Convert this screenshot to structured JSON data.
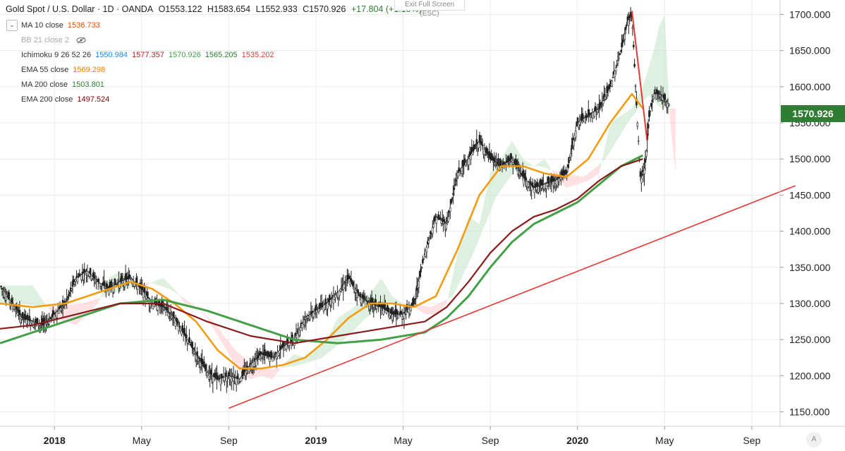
{
  "header": {
    "symbol": "Gold Spot / U.S. Dollar · 1D · OANDA",
    "open": "O1553.122",
    "high": "H1583.654",
    "low": "L1552.933",
    "close": "C1570.926",
    "change": "+17.804 (+1.15%)",
    "exit_fullscreen": "Exit Full Screen (ESC)"
  },
  "indicators": [
    {
      "label": "MA 10 close",
      "values": [
        "1536.733"
      ],
      "colors": [
        "#e65100"
      ]
    },
    {
      "label": "BB 21 close 2",
      "values": [],
      "colors": []
    },
    {
      "label": "Ichimoku 9 26 52 26",
      "values": [
        "1550.984",
        "1577.357",
        "1570.926",
        "1565.205",
        "1535.202"
      ],
      "colors": [
        "#1e88e5",
        "#b71c1c",
        "#43a047",
        "#2e7d32",
        "#e53935"
      ]
    },
    {
      "label": "EMA 55 close",
      "values": [
        "1569.298"
      ],
      "colors": [
        "#f57c00"
      ]
    },
    {
      "label": "MA 200 close",
      "values": [
        "1503.801"
      ],
      "colors": [
        "#2e7d32"
      ]
    },
    {
      "label": "EMA 200 close",
      "values": [
        "1497.524"
      ],
      "colors": [
        "#8b0000"
      ]
    }
  ],
  "price_tag": "1570.926",
  "logo_text": "A",
  "colors": {
    "ema55": "#f39c12",
    "ma200": "#43a047",
    "ema200": "#8b1a1a",
    "trendline": "#e53935",
    "cloud_bull": "#c8e6c9",
    "cloud_bear": "#ffcdd2",
    "candle": "#222222",
    "price_tag_bg": "#2e7d32"
  },
  "chart_data": {
    "type": "line",
    "title": "Gold Spot / U.S. Dollar · 1D · OANDA",
    "ylim": [
      1130,
      1720
    ],
    "y_ticks": [
      "1150.000",
      "1200.000",
      "1250.000",
      "1300.000",
      "1350.000",
      "1400.000",
      "1450.000",
      "1500.000",
      "1550.000",
      "1600.000",
      "1650.000",
      "1700.000"
    ],
    "x_ticks": [
      "2018",
      "May",
      "Sep",
      "2019",
      "May",
      "Sep",
      "2020",
      "May",
      "Sep"
    ],
    "x_tick_months": [
      0,
      4,
      8,
      12,
      16,
      20,
      24,
      28,
      32
    ],
    "x_range_months": [
      -2.5,
      33.3
    ],
    "series": [
      {
        "name": "Price (close)",
        "x": [
          -2.5,
          -1.5,
          -0.5,
          0.5,
          1.0,
          1.5,
          2.0,
          2.5,
          3.0,
          3.5,
          4.0,
          4.5,
          5.0,
          5.5,
          6.0,
          6.5,
          7.0,
          7.5,
          8.0,
          8.5,
          9.0,
          9.5,
          10.0,
          10.5,
          11.0,
          11.5,
          12.0,
          12.5,
          13.0,
          13.5,
          14.0,
          14.5,
          15.0,
          15.5,
          16.0,
          16.5,
          17.0,
          17.5,
          18.0,
          18.5,
          19.0,
          19.5,
          20.0,
          20.5,
          21.0,
          21.5,
          22.0,
          22.5,
          23.0,
          23.5,
          24.0,
          24.5,
          25.0,
          25.5,
          26.0,
          26.3,
          26.5,
          26.7,
          26.9,
          27.1,
          27.3,
          27.5,
          27.8,
          28.2
        ],
        "values": [
          1325,
          1280,
          1270,
          1300,
          1335,
          1345,
          1330,
          1320,
          1330,
          1335,
          1320,
          1300,
          1295,
          1280,
          1255,
          1230,
          1205,
          1195,
          1200,
          1195,
          1215,
          1230,
          1225,
          1240,
          1250,
          1280,
          1290,
          1300,
          1315,
          1335,
          1310,
          1300,
          1295,
          1285,
          1285,
          1300,
          1370,
          1420,
          1410,
          1480,
          1500,
          1525,
          1500,
          1490,
          1500,
          1475,
          1460,
          1465,
          1470,
          1480,
          1550,
          1560,
          1570,
          1600,
          1650,
          1690,
          1700,
          1580,
          1470,
          1490,
          1560,
          1590,
          1590,
          1575
        ]
      },
      {
        "name": "EMA 55",
        "x": [
          -2.5,
          -1.0,
          0.5,
          2.0,
          3.5,
          4.5,
          5.5,
          6.5,
          7.5,
          8.5,
          9.5,
          10.5,
          11.5,
          12.5,
          13.5,
          14.5,
          15.5,
          16.5,
          17.5,
          18.5,
          19.5,
          20.5,
          21.5,
          22.5,
          23.5,
          24.5,
          25.5,
          26.5,
          27.0
        ],
        "values": [
          1300,
          1295,
          1300,
          1315,
          1330,
          1320,
          1300,
          1275,
          1235,
          1210,
          1210,
          1215,
          1225,
          1250,
          1280,
          1300,
          1300,
          1295,
          1310,
          1375,
          1450,
          1490,
          1490,
          1480,
          1475,
          1500,
          1550,
          1590,
          1570
        ]
      },
      {
        "name": "MA 200",
        "x": [
          -2.5,
          -1.0,
          1.0,
          3.0,
          5.0,
          7.0,
          9.0,
          11.0,
          13.0,
          15.0,
          17.0,
          18.0,
          19.0,
          20.0,
          21.0,
          22.0,
          23.0,
          24.0,
          25.0,
          26.0,
          27.0
        ],
        "values": [
          1245,
          1260,
          1280,
          1300,
          1305,
          1290,
          1270,
          1250,
          1245,
          1250,
          1260,
          1280,
          1310,
          1350,
          1385,
          1410,
          1425,
          1440,
          1465,
          1490,
          1505
        ]
      },
      {
        "name": "EMA 200",
        "x": [
          -2.5,
          -1.0,
          1.0,
          3.0,
          5.0,
          7.0,
          9.0,
          11.0,
          13.0,
          15.0,
          17.0,
          18.0,
          19.0,
          20.0,
          21.0,
          22.0,
          23.0,
          24.0,
          25.0,
          26.0,
          27.0
        ],
        "values": [
          1265,
          1270,
          1285,
          1300,
          1300,
          1275,
          1255,
          1245,
          1255,
          1265,
          1275,
          1295,
          1330,
          1370,
          1400,
          1420,
          1430,
          1445,
          1470,
          1490,
          1500
        ]
      },
      {
        "name": "Trendline",
        "x": [
          8.0,
          34.0
        ],
        "values": [
          1155,
          1463
        ]
      },
      {
        "name": "Trendline (drop)",
        "x": [
          26.5,
          27.2
        ],
        "values": [
          1705,
          1525
        ]
      }
    ],
    "grid": true,
    "legend": "top-left"
  }
}
